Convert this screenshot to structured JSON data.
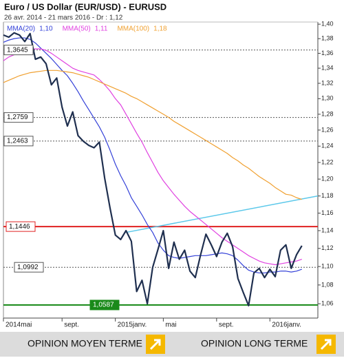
{
  "chart_data": {
    "type": "line",
    "title": "Euro / US Dollar (EUR/USD) - EURUSD",
    "subtitle": "26 avr. 2014 - 21 mars 2016 - Dr : 1,12",
    "log_scale": true,
    "ylim": [
      1.045,
      1.403
    ],
    "yticks": [
      {
        "value": 1.06,
        "label": "1,06"
      },
      {
        "value": 1.08,
        "label": "1,08"
      },
      {
        "value": 1.1,
        "label": "1,10"
      },
      {
        "value": 1.12,
        "label": "1,12"
      },
      {
        "value": 1.14,
        "label": "1,14"
      },
      {
        "value": 1.16,
        "label": "1,16"
      },
      {
        "value": 1.18,
        "label": "1,18"
      },
      {
        "value": 1.2,
        "label": "1,20"
      },
      {
        "value": 1.22,
        "label": "1,22"
      },
      {
        "value": 1.24,
        "label": "1,24"
      },
      {
        "value": 1.26,
        "label": "1,26"
      },
      {
        "value": 1.28,
        "label": "1,28"
      },
      {
        "value": 1.3,
        "label": "1,30"
      },
      {
        "value": 1.32,
        "label": "1,32"
      },
      {
        "value": 1.34,
        "label": "1,34"
      },
      {
        "value": 1.36,
        "label": "1,36"
      },
      {
        "value": 1.38,
        "label": "1,38"
      },
      {
        "value": 1.4,
        "label": "1,40"
      }
    ],
    "categories": [
      "2014mai",
      null,
      null,
      null,
      null,
      null,
      null,
      null,
      null,
      null,
      null,
      "sept.",
      null,
      null,
      null,
      null,
      null,
      null,
      null,
      null,
      null,
      "2015janv.",
      null,
      null,
      null,
      null,
      null,
      null,
      null,
      null,
      "mai",
      null,
      null,
      null,
      null,
      null,
      null,
      null,
      null,
      null,
      "sept.",
      null,
      null,
      null,
      null,
      null,
      null,
      null,
      null,
      null,
      "2016janv.",
      null,
      null,
      null,
      null,
      null,
      null,
      null,
      null,
      null
    ],
    "price": {
      "color": "#1f2f4f",
      "values": [
        1.385,
        1.382,
        1.388,
        1.385,
        1.376,
        1.387,
        1.352,
        1.355,
        1.346,
        1.318,
        1.327,
        1.289,
        1.265,
        1.283,
        1.253,
        1.246,
        1.241,
        1.238,
        1.245,
        1.201,
        1.166,
        1.135,
        1.13,
        1.14,
        1.128,
        1.073,
        1.085,
        1.06,
        1.099,
        1.119,
        1.14,
        1.098,
        1.127,
        1.108,
        1.118,
        1.095,
        1.088,
        1.113,
        1.136,
        1.124,
        1.111,
        1.127,
        1.137,
        1.122,
        1.087,
        1.072,
        1.058,
        1.093,
        1.098,
        1.088,
        1.097,
        1.089,
        1.118,
        1.124,
        1.098,
        1.113,
        1.123,
        null,
        null,
        null
      ]
    },
    "series": [
      {
        "name": "MMA(20)",
        "legend_value": "1,10",
        "color": "#3340d8",
        "values": [
          1.375,
          1.378,
          1.38,
          1.381,
          1.381,
          1.379,
          1.374,
          1.367,
          1.36,
          1.353,
          1.345,
          1.337,
          1.33,
          1.32,
          1.309,
          1.297,
          1.286,
          1.275,
          1.264,
          1.251,
          1.235,
          1.218,
          1.204,
          1.192,
          1.178,
          1.168,
          1.158,
          1.147,
          1.138,
          1.126,
          1.118,
          1.112,
          1.11,
          1.109,
          1.11,
          1.111,
          1.112,
          1.112,
          1.112,
          1.113,
          1.114,
          1.115,
          1.114,
          1.112,
          1.107,
          1.101,
          1.096,
          1.094,
          1.093,
          1.093,
          1.094,
          1.094,
          1.095,
          1.095,
          1.094,
          1.095,
          1.097,
          null,
          null,
          null
        ]
      },
      {
        "name": "MMA(50)",
        "legend_value": "1,11",
        "color": "#e040e0",
        "values": [
          1.35,
          1.355,
          1.358,
          1.361,
          1.363,
          1.365,
          1.366,
          1.366,
          1.364,
          1.36,
          1.355,
          1.35,
          1.345,
          1.34,
          1.337,
          1.335,
          1.333,
          1.331,
          1.325,
          1.318,
          1.31,
          1.3,
          1.292,
          1.28,
          1.268,
          1.256,
          1.245,
          1.232,
          1.22,
          1.208,
          1.198,
          1.19,
          1.182,
          1.175,
          1.168,
          1.162,
          1.157,
          1.152,
          1.147,
          1.142,
          1.137,
          1.132,
          1.128,
          1.124,
          1.12,
          1.116,
          1.112,
          1.109,
          1.106,
          1.104,
          1.103,
          1.102,
          1.103,
          1.104,
          1.105,
          1.106,
          1.108,
          null,
          null,
          null
        ]
      },
      {
        "name": "MMA(100)",
        "legend_value": "1,18",
        "color": "#f0a030",
        "values": [
          1.321,
          1.324,
          1.327,
          1.33,
          1.332,
          1.334,
          1.335,
          1.336,
          1.337,
          1.337,
          1.337,
          1.336,
          1.335,
          1.334,
          1.332,
          1.33,
          1.328,
          1.325,
          1.322,
          1.319,
          1.316,
          1.313,
          1.31,
          1.307,
          1.303,
          1.3,
          1.296,
          1.292,
          1.288,
          1.284,
          1.28,
          1.276,
          1.271,
          1.267,
          1.263,
          1.259,
          1.255,
          1.251,
          1.247,
          1.243,
          1.239,
          1.235,
          1.231,
          1.226,
          1.222,
          1.217,
          1.213,
          1.208,
          1.203,
          1.199,
          1.195,
          1.19,
          1.186,
          1.182,
          1.181,
          1.178,
          1.176,
          null,
          null,
          null
        ]
      }
    ],
    "trend_line": {
      "color": "#5bc8ea",
      "x": [
        23,
        59
      ],
      "values": [
        1.138,
        1.18
      ]
    },
    "levels": [
      {
        "value": 1.3645,
        "label": "1,3645",
        "color": "#555555",
        "style": "dotted"
      },
      {
        "value": 1.2759,
        "label": "1,2759",
        "color": "#555555",
        "style": "dotted"
      },
      {
        "value": 1.2463,
        "label": "1,2463",
        "color": "#555555",
        "style": "dotted"
      },
      {
        "value": 1.1446,
        "label": "1,1446",
        "color": "#e02020",
        "style": "solid"
      },
      {
        "value": 1.0992,
        "label": "1,0992",
        "color": "#555555",
        "style": "dotted"
      },
      {
        "value": 1.0587,
        "label": "1,0587",
        "color": "#1a8a1a",
        "style": "solid"
      }
    ]
  },
  "footer": {
    "buttons": [
      "OPINION MOYEN TERME",
      "OPINION LONG TERME"
    ]
  }
}
